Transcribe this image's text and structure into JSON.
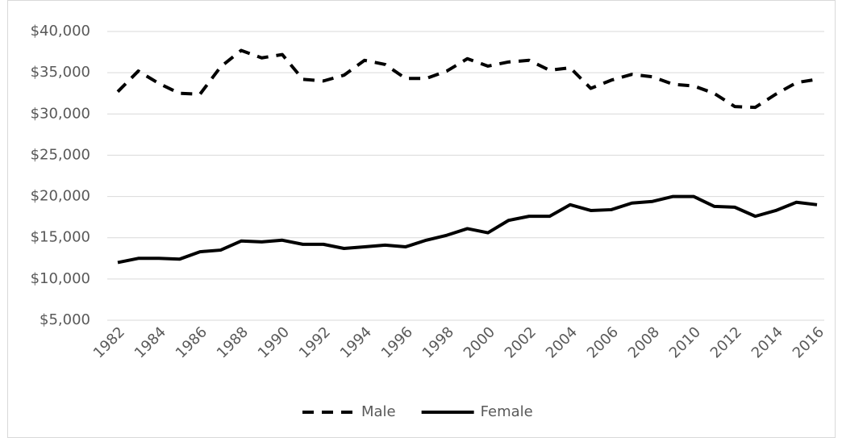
{
  "chart_data": {
    "type": "line",
    "categories": [
      "1982",
      null,
      "1984",
      null,
      "1986",
      null,
      "1988",
      null,
      "1990",
      null,
      "1992",
      null,
      "1994",
      null,
      "1996",
      null,
      "1998",
      null,
      "2000",
      null,
      "2002",
      null,
      "2004",
      null,
      "2006",
      null,
      "2008",
      null,
      "2010",
      null,
      "2012",
      null,
      "2014",
      null,
      "2016"
    ],
    "series": [
      {
        "name": "Male",
        "color": "#000000",
        "dash": true,
        "values": [
          32700,
          35200,
          33700,
          32500,
          32400,
          35700,
          37700,
          36800,
          37200,
          34200,
          34000,
          34700,
          36500,
          36000,
          34300,
          34300,
          35200,
          36700,
          35800,
          36300,
          36500,
          35300,
          35600,
          33100,
          34100,
          34800,
          34500,
          33600,
          33400,
          32500,
          30900,
          30800,
          32400,
          33800,
          34200
        ]
      },
      {
        "name": "Female",
        "color": "#000000",
        "dash": false,
        "values": [
          12000,
          12500,
          12500,
          12400,
          13300,
          13500,
          14600,
          14500,
          14700,
          14200,
          14200,
          13700,
          13900,
          14100,
          13900,
          14700,
          15300,
          16100,
          15600,
          17100,
          17600,
          17600,
          19000,
          18300,
          18400,
          19200,
          19400,
          20000,
          20000,
          18800,
          18700,
          17600,
          18300,
          19300,
          19000
        ]
      }
    ],
    "ylim": [
      5000,
      40000
    ],
    "yticks": [
      {
        "value": 5000,
        "label": "$5,000"
      },
      {
        "value": 10000,
        "label": "$10,000"
      },
      {
        "value": 15000,
        "label": "$15,000"
      },
      {
        "value": 20000,
        "label": "$20,000"
      },
      {
        "value": 25000,
        "label": "$25,000"
      },
      {
        "value": 30000,
        "label": "$30,000"
      },
      {
        "value": 35000,
        "label": "$35,000"
      },
      {
        "value": 40000,
        "label": "$40,000"
      }
    ],
    "grid": true,
    "legend": "bottom"
  }
}
